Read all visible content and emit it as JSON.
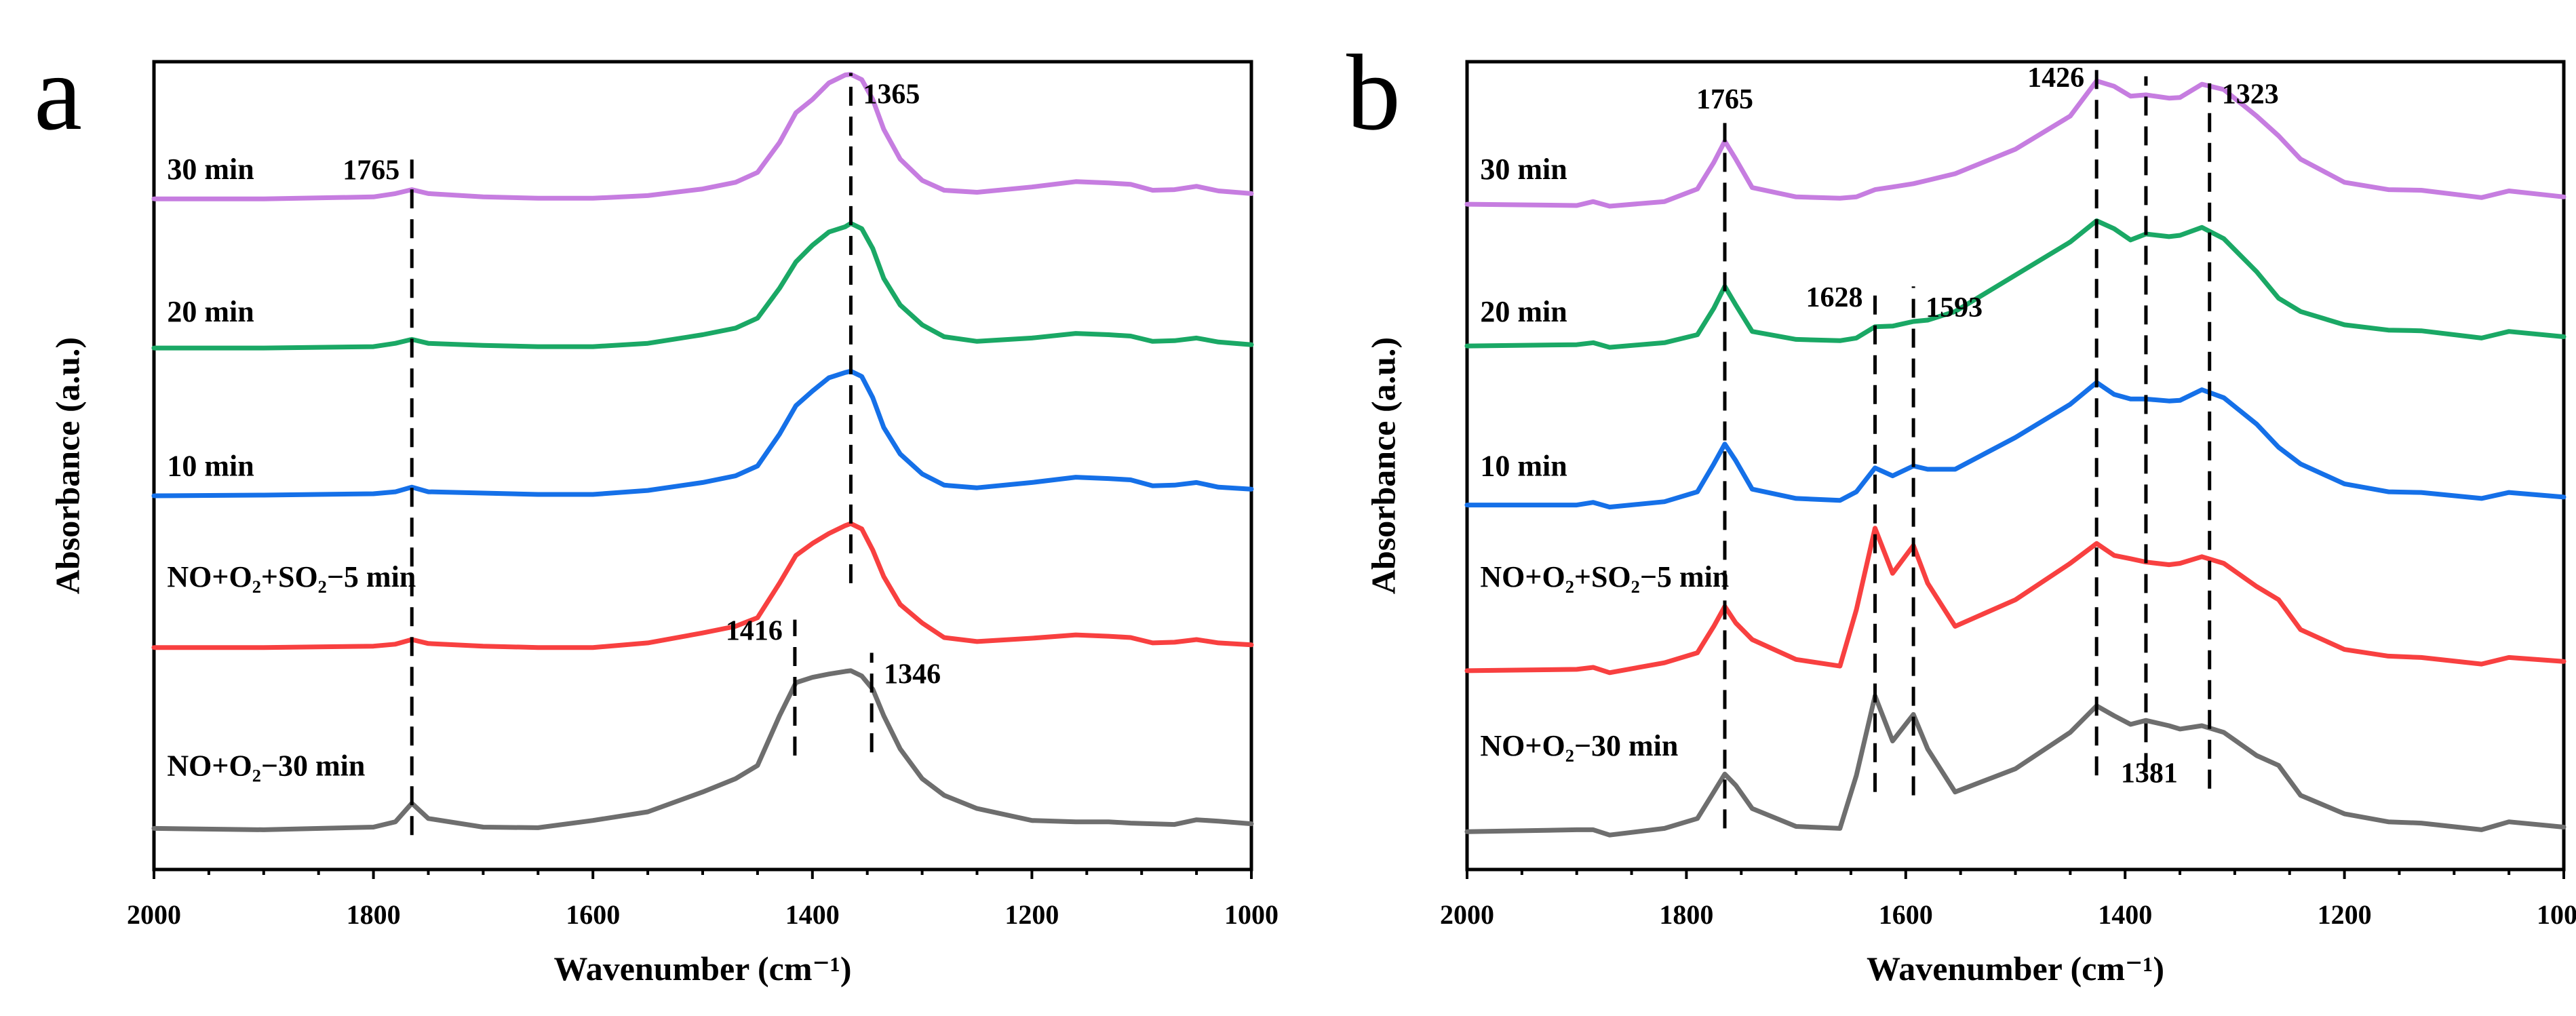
{
  "chart_data": [
    {
      "panel_label": "a",
      "type": "line",
      "xlabel": "Wavenumber (cm⁻¹)",
      "ylabel": "Absorbance (a.u.)",
      "xlim": [
        2000,
        1000
      ],
      "ylim": [
        0,
        1219
      ],
      "xticks": [
        "2000",
        "1800",
        "1600",
        "1400",
        "1200",
        "1000"
      ],
      "grid": false,
      "x": [
        2000,
        1900,
        1800,
        1780,
        1765,
        1750,
        1700,
        1650,
        1600,
        1550,
        1500,
        1470,
        1450,
        1430,
        1415,
        1400,
        1385,
        1370,
        1365,
        1355,
        1345,
        1335,
        1320,
        1300,
        1280,
        1250,
        1200,
        1160,
        1130,
        1110,
        1090,
        1070,
        1050,
        1030,
        1000
      ],
      "series": [
        {
          "name": "30 min",
          "color": "#c67de0",
          "label_y": 1042,
          "values": [
            1012,
            1012,
            1015,
            1020,
            1026,
            1020,
            1015,
            1013,
            1013,
            1017,
            1027,
            1037,
            1052,
            1097,
            1142,
            1162,
            1187,
            1199,
            1200,
            1192,
            1162,
            1117,
            1072,
            1040,
            1025,
            1022,
            1030,
            1038,
            1036,
            1034,
            1025,
            1026,
            1031,
            1024,
            1020
          ]
        },
        {
          "name": "20 min",
          "color": "#1aa865",
          "label_y": 827,
          "values": [
            787,
            787,
            789,
            794,
            800,
            794,
            791,
            789,
            789,
            794,
            807,
            817,
            832,
            877,
            917,
            942,
            962,
            970,
            975,
            967,
            937,
            892,
            852,
            822,
            804,
            797,
            802,
            809,
            807,
            805,
            797,
            798,
            802,
            796,
            792
          ]
        },
        {
          "name": "10 min",
          "color": "#1570e8",
          "label_y": 594,
          "values": [
            564,
            565,
            567,
            570,
            577,
            570,
            568,
            566,
            566,
            572,
            584,
            594,
            609,
            657,
            700,
            722,
            742,
            750,
            752,
            744,
            712,
            667,
            627,
            597,
            580,
            576,
            584,
            592,
            590,
            588,
            579,
            580,
            584,
            577,
            574
          ]
        },
        {
          "name": "NO+O₂+SO₂−5 min",
          "color": "#f84040",
          "label_y": 427,
          "values": [
            335,
            335,
            337,
            340,
            347,
            341,
            337,
            335,
            335,
            342,
            357,
            367,
            380,
            432,
            474,
            492,
            507,
            519,
            522,
            514,
            482,
            442,
            400,
            372,
            350,
            344,
            349,
            354,
            352,
            350,
            342,
            343,
            347,
            342,
            339
          ]
        },
        {
          "name": "NO+O₂−30 min",
          "color": "#6e6e6e",
          "label_y": 142,
          "values": [
            62,
            60,
            64,
            72,
            100,
            77,
            64,
            63,
            74,
            87,
            117,
            137,
            157,
            232,
            282,
            290,
            295,
            299,
            300,
            292,
            272,
            232,
            182,
            137,
            112,
            92,
            74,
            72,
            72,
            70,
            69,
            68,
            75,
            73,
            69
          ]
        }
      ],
      "annotations": [
        {
          "text": "1765",
          "x": 1765,
          "y_range": [
            52,
            1072
          ],
          "side": "left-top"
        },
        {
          "text": "1365",
          "x": 1365,
          "y_range": [
            432,
            1202
          ],
          "side": "right-top"
        },
        {
          "text": "1416",
          "x": 1416,
          "y_range": [
            172,
            377
          ],
          "side": "left-top"
        },
        {
          "text": "1346",
          "x": 1346,
          "y_range": [
            177,
            327
          ],
          "side": "right-top"
        }
      ]
    },
    {
      "panel_label": "b",
      "type": "line",
      "xlabel": "Wavenumber (cm⁻¹)",
      "ylabel": "Absorbance (a.u.)",
      "xlim": [
        2000,
        1000
      ],
      "ylim": [
        0,
        1219
      ],
      "xticks": [
        "2000",
        "1800",
        "1600",
        "1400",
        "1200",
        "1000"
      ],
      "grid": false,
      "x": [
        2000,
        1900,
        1885,
        1870,
        1820,
        1790,
        1775,
        1765,
        1755,
        1740,
        1700,
        1660,
        1645,
        1628,
        1612,
        1593,
        1580,
        1555,
        1500,
        1450,
        1426,
        1410,
        1395,
        1381,
        1360,
        1350,
        1330,
        1310,
        1280,
        1260,
        1240,
        1200,
        1160,
        1130,
        1075,
        1050,
        1000
      ],
      "series": [
        {
          "name": "30 min",
          "color": "#c67de0",
          "label_y": 1042,
          "values": [
            1004,
            1002,
            1008,
            1001,
            1008,
            1027,
            1067,
            1099,
            1072,
            1029,
            1015,
            1013,
            1015,
            1026,
            1030,
            1035,
            1040,
            1050,
            1087,
            1137,
            1190,
            1182,
            1167,
            1169,
            1164,
            1165,
            1185,
            1177,
            1137,
            1107,
            1072,
            1037,
            1026,
            1025,
            1014,
            1024,
            1015
          ]
        },
        {
          "name": "20 min",
          "color": "#1aa865",
          "label_y": 827,
          "values": [
            790,
            792,
            795,
            788,
            795,
            807,
            847,
            880,
            852,
            812,
            800,
            798,
            802,
            819,
            820,
            827,
            829,
            842,
            897,
            947,
            979,
            967,
            950,
            959,
            955,
            957,
            969,
            952,
            902,
            862,
            842,
            822,
            814,
            813,
            802,
            812,
            804
          ]
        },
        {
          "name": "10 min",
          "color": "#1570e8",
          "label_y": 594,
          "values": [
            550,
            550,
            554,
            547,
            555,
            570,
            612,
            642,
            617,
            574,
            560,
            557,
            570,
            606,
            594,
            609,
            604,
            604,
            652,
            702,
            735,
            717,
            710,
            710,
            707,
            708,
            724,
            712,
            672,
            637,
            612,
            582,
            570,
            569,
            560,
            569,
            562
          ]
        },
        {
          "name": "NO+O₂+SO₂−5 min",
          "color": "#f84040",
          "label_y": 427,
          "values": [
            300,
            302,
            305,
            297,
            312,
            327,
            367,
            397,
            372,
            347,
            317,
            307,
            392,
            515,
            447,
            489,
            432,
            367,
            407,
            462,
            492,
            474,
            469,
            464,
            460,
            462,
            472,
            462,
            427,
            407,
            362,
            332,
            322,
            320,
            310,
            320,
            314
          ]
        },
        {
          "name": "NO+O₂−30 min",
          "color": "#6e6e6e",
          "label_y": 172,
          "values": [
            57,
            60,
            60,
            52,
            62,
            77,
            117,
            144,
            127,
            92,
            65,
            62,
            142,
            262,
            194,
            234,
            182,
            117,
            152,
            207,
            247,
            232,
            219,
            225,
            217,
            212,
            217,
            207,
            172,
            157,
            112,
            84,
            72,
            70,
            60,
            72,
            64
          ]
        }
      ],
      "annotations": [
        {
          "text": "1765",
          "x": 1765,
          "y_range": [
            62,
            1134
          ],
          "side": "center-top"
        },
        {
          "text": "1628",
          "x": 1628,
          "y_range": [
            117,
            880
          ],
          "side": "left-top"
        },
        {
          "text": "1593",
          "x": 1593,
          "y_range": [
            112,
            880
          ],
          "side": "right-top"
        },
        {
          "text": "1426",
          "x": 1426,
          "y_range": [
            142,
            1212
          ],
          "side": "left-top"
        },
        {
          "text": "1381",
          "x": 1381,
          "y_range": [
            147,
            1197
          ],
          "side": "right-bottom"
        },
        {
          "text": "1323",
          "x": 1323,
          "y_range": [
            122,
            1202
          ],
          "side": "right-top"
        }
      ]
    }
  ]
}
